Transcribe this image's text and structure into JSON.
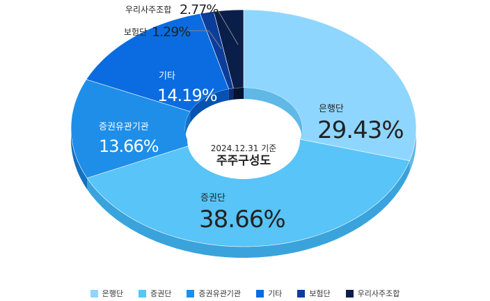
{
  "chart_data": {
    "type": "pie",
    "style": "3d-donut",
    "center_label": {
      "date": "2024.12.31 기준",
      "title": "주주구성도"
    },
    "slices": [
      {
        "label": "은행단",
        "value": 29.43,
        "display": "29.43%",
        "color": "#8fd6ff",
        "side_color": "#5fb8e6"
      },
      {
        "label": "증권단",
        "value": 38.66,
        "display": "38.66%",
        "color": "#58c4f7",
        "side_color": "#3aa3db"
      },
      {
        "label": "증권유관기관",
        "value": 13.66,
        "display": "13.66%",
        "color": "#1f8ee9",
        "side_color": "#1670c0"
      },
      {
        "label": "기타",
        "value": 14.19,
        "display": "14.19%",
        "color": "#0a6ce0",
        "side_color": "#0552b0"
      },
      {
        "label": "보험단",
        "value": 1.29,
        "display": "1.29%",
        "color": "#0d3d9b",
        "side_color": "#0a2d75"
      },
      {
        "label": "우리사주조합",
        "value": 2.77,
        "display": "2.77%",
        "color": "#0a1e4a",
        "side_color": "#061230"
      }
    ],
    "legend_position": "bottom"
  }
}
